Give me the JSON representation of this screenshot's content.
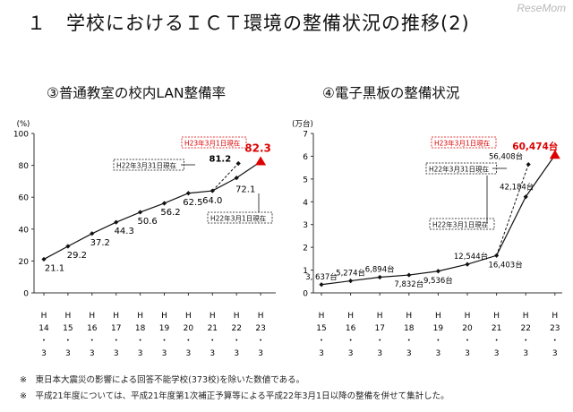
{
  "title": "１　学校におけるＩＣＴ環境の整備状況の推移(2)",
  "logo": "ReseMom",
  "notes": [
    "※　東日本大震災の影響による回答不能学校(373校)を除いた数値である。",
    "※　平成21年度については、平成21年度第1次補正予算等による平成22年3月1日以降の整備を併せて集計した。"
  ],
  "chart_data": [
    {
      "type": "line",
      "title": "③普通教室の校内LAN整備率",
      "ylabel": "(%)",
      "ylim": [
        0,
        100
      ],
      "yticks": [
        "0",
        "20",
        "40",
        "60",
        "80",
        "100"
      ],
      "categories": [
        [
          "H",
          "14",
          "・",
          "3"
        ],
        [
          "H",
          "15",
          "・",
          "3"
        ],
        [
          "H",
          "16",
          "・",
          "3"
        ],
        [
          "H",
          "17",
          "・",
          "3"
        ],
        [
          "H",
          "18",
          "・",
          "3"
        ],
        [
          "H",
          "19",
          "・",
          "3"
        ],
        [
          "H",
          "20",
          "・",
          "3"
        ],
        [
          "H",
          "21",
          "・",
          "3"
        ],
        [
          "H",
          "22",
          "・",
          "3"
        ],
        [
          "H",
          "23",
          "・",
          "3"
        ]
      ],
      "series": [
        {
          "values": [
            21.1,
            29.2,
            37.2,
            44.3,
            50.6,
            56.2,
            62.5,
            64.0,
            72.1,
            82.3
          ]
        }
      ],
      "value_labels": [
        "21.1",
        "29.2",
        "37.2",
        "44.3",
        "50.6",
        "56.2",
        "62.5",
        "64.0",
        "72.1",
        "82.3"
      ],
      "side_point": {
        "value": 81.2,
        "label": "81.2"
      },
      "callouts": [
        "H23年3月1日現在",
        "H22年3月31日現在",
        "H22年3月1日現在"
      ],
      "colors": {
        "line": "#111111",
        "highlight": "#dd0000"
      },
      "grid": false
    },
    {
      "type": "line",
      "title": "④電子黒板の整備状況",
      "ylabel": "(万台)",
      "ylim": [
        0,
        7
      ],
      "yticks": [
        "0",
        "1",
        "2",
        "3",
        "4",
        "5",
        "6",
        "7"
      ],
      "categories": [
        [
          "H",
          "15",
          "・",
          "3"
        ],
        [
          "H",
          "16",
          "・",
          "3"
        ],
        [
          "H",
          "17",
          "・",
          "3"
        ],
        [
          "H",
          "18",
          "・",
          "3"
        ],
        [
          "H",
          "19",
          "・",
          "3"
        ],
        [
          "H",
          "20",
          "・",
          "3"
        ],
        [
          "H",
          "21",
          "・",
          "3"
        ],
        [
          "H",
          "22",
          "・",
          "3"
        ],
        [
          "H",
          "23",
          "・",
          "3"
        ]
      ],
      "series": [
        {
          "values": [
            3637,
            5274,
            6894,
            7832,
            9536,
            12544,
            16403,
            42184,
            60474
          ]
        }
      ],
      "value_labels": [
        "3, 637台",
        "5,274台",
        "6,894台",
        "7,832台",
        "9,536台",
        "12,544台",
        "16,403台",
        "42,184台",
        "60,474台"
      ],
      "side_point": {
        "value": 56408,
        "label": "56,408台"
      },
      "callouts": [
        "H23年3月1日現在",
        "H22年3月31日現在",
        "H22年3月1日現在"
      ],
      "colors": {
        "line": "#111111",
        "highlight": "#dd0000"
      },
      "grid": false
    }
  ]
}
